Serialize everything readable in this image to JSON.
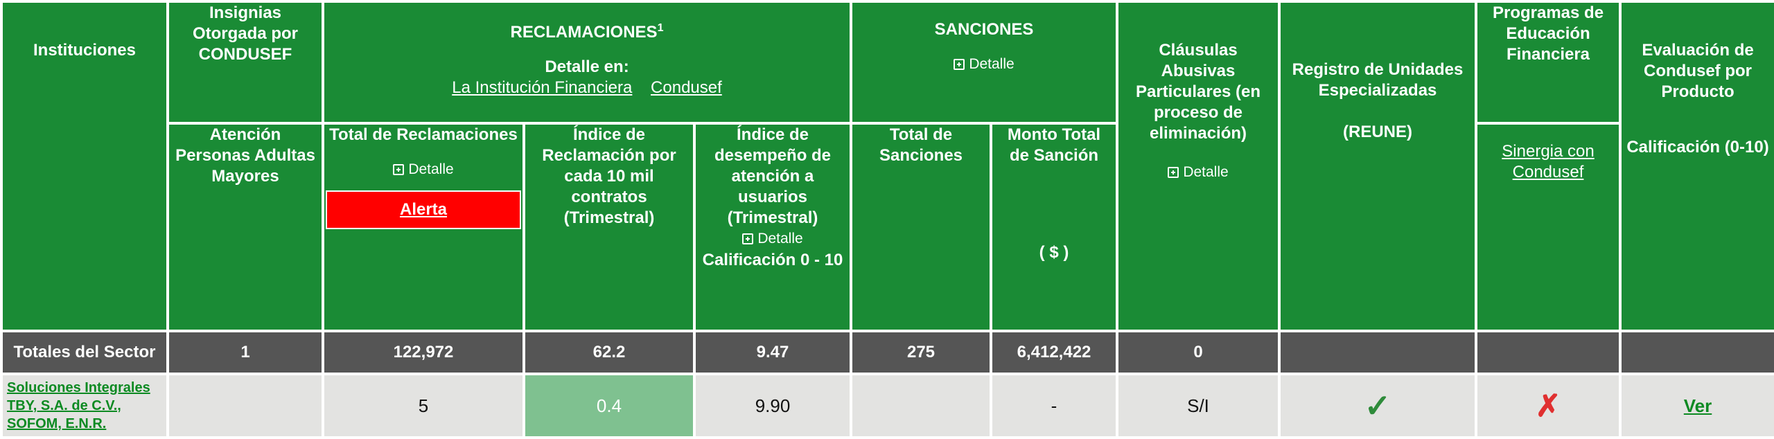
{
  "header": {
    "instituciones": "Instituciones",
    "insignias": "Insignias Otorgada por CONDUSEF",
    "reclamaciones": "RECLAMACIONES",
    "reclamaciones_sup": "1",
    "detalle_en": "Detalle en:",
    "link_institucion": "La Institución Financiera",
    "link_condusef": "Condusef",
    "sanciones": "SANCIONES",
    "detalle": "Detalle",
    "clausulas": "Cláusulas Abusivas Particulares (en proceso de eliminación)",
    "reune_title": "Registro de Unidades Especializadas",
    "reune_abbr": "(REUNE)",
    "programas": "Programas de Educación Financiera",
    "sinergia": "Sinergia con Condusef",
    "evaluacion": "Evaluación de Condusef por Producto"
  },
  "subheader": {
    "atencion": "Atención Personas Adultas Mayores",
    "total_reclamaciones": "Total de Reclamaciones",
    "alerta": "Alerta",
    "indice_reclamacion": "Índice de Reclamación por cada 10 mil contratos (Trimestral)",
    "indice_desempeno": "Índice de desempeño de atención a usuarios (Trimestral)",
    "calificacion_rango": "Calificación 0 - 10",
    "total_sanciones": "Total de Sanciones",
    "monto_total": "Monto Total de Sanción",
    "moneda": "( $ )",
    "calificacion_eval": "Calificación (0-10)"
  },
  "totals": {
    "label": "Totales del Sector",
    "insignias": "1",
    "total_reclamaciones": "122,972",
    "indice_reclamacion": "62.2",
    "indice_desempeno": "9.47",
    "total_sanciones": "275",
    "monto_total": "6,412,422",
    "clausulas": "0"
  },
  "row": {
    "institution": "Soluciones Integrales TBY, S.A. de C.V., SOFOM, E.N.R.",
    "total_reclamaciones": "5",
    "indice_reclamacion": "0.4",
    "indice_desempeno": "9.90",
    "monto_total": "-",
    "clausulas": "S/I",
    "reune_icon": "check-icon",
    "programas_icon": "cross-icon",
    "ver": "Ver"
  },
  "colors": {
    "header_green": "#1a8b35",
    "totals_gray": "#555555",
    "row_gray": "#e3e3e1",
    "alert_red": "#ff0000",
    "highlight_green": "#7fc190",
    "link_green": "#0d8a22"
  }
}
